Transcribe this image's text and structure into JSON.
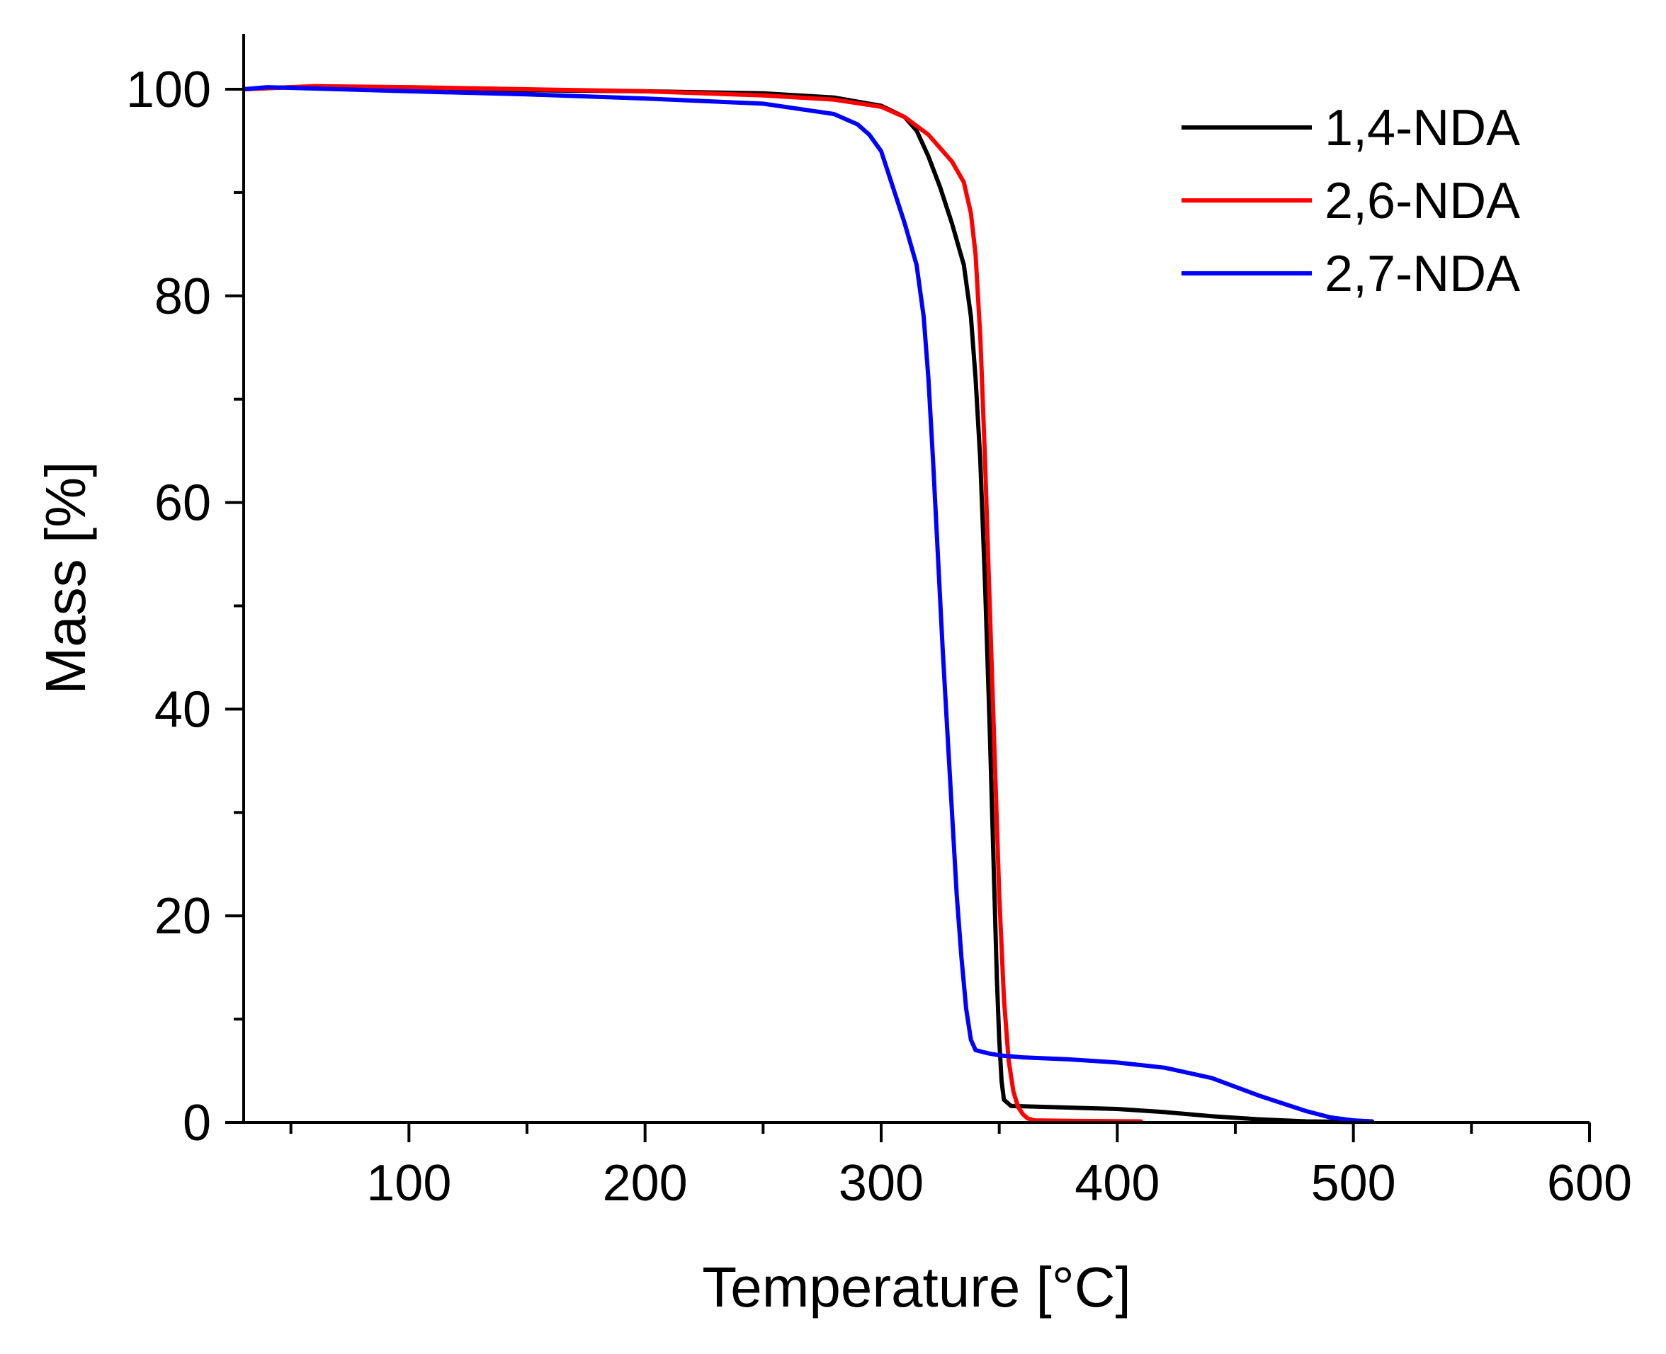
{
  "chart_data": {
    "type": "line",
    "title": "",
    "xlabel": "Temperature [°C]",
    "ylabel": "Mass [%]",
    "xlim": [
      30,
      600
    ],
    "ylim": [
      0,
      105
    ],
    "xticks": [
      100,
      200,
      300,
      400,
      500,
      600
    ],
    "xminor": [
      50,
      150,
      250,
      350,
      450,
      550
    ],
    "yticks": [
      0,
      20,
      40,
      60,
      80,
      100
    ],
    "yminor": [
      10,
      30,
      50,
      70,
      90
    ],
    "legend_position": "top-right",
    "series": [
      {
        "name": "1,4-NDA",
        "color": "#000000",
        "points": [
          [
            30,
            100
          ],
          [
            50,
            100.2
          ],
          [
            100,
            100
          ],
          [
            150,
            99.9
          ],
          [
            200,
            99.8
          ],
          [
            250,
            99.6
          ],
          [
            280,
            99.2
          ],
          [
            300,
            98.4
          ],
          [
            310,
            97.3
          ],
          [
            315,
            96
          ],
          [
            320,
            93.5
          ],
          [
            325,
            90.5
          ],
          [
            330,
            87
          ],
          [
            335,
            83
          ],
          [
            338,
            78
          ],
          [
            340,
            72
          ],
          [
            342,
            64
          ],
          [
            344,
            52
          ],
          [
            346,
            38
          ],
          [
            348,
            22
          ],
          [
            349,
            14
          ],
          [
            350,
            8
          ],
          [
            351,
            4
          ],
          [
            352,
            2.2
          ],
          [
            355,
            1.6
          ],
          [
            370,
            1.5
          ],
          [
            400,
            1.3
          ],
          [
            420,
            1.0
          ],
          [
            440,
            0.6
          ],
          [
            460,
            0.3
          ],
          [
            480,
            0.1
          ],
          [
            500,
            0.05
          ]
        ]
      },
      {
        "name": "2,6-NDA",
        "color": "#ff0000",
        "points": [
          [
            30,
            100
          ],
          [
            60,
            100.3
          ],
          [
            100,
            100.2
          ],
          [
            150,
            100
          ],
          [
            200,
            99.8
          ],
          [
            250,
            99.4
          ],
          [
            280,
            99
          ],
          [
            300,
            98.3
          ],
          [
            310,
            97.3
          ],
          [
            320,
            95.6
          ],
          [
            330,
            93
          ],
          [
            335,
            91
          ],
          [
            338,
            88
          ],
          [
            340,
            84
          ],
          [
            342,
            76
          ],
          [
            344,
            64
          ],
          [
            346,
            50
          ],
          [
            348,
            36
          ],
          [
            350,
            22
          ],
          [
            352,
            12
          ],
          [
            354,
            6
          ],
          [
            356,
            3
          ],
          [
            358,
            1.5
          ],
          [
            360,
            0.8
          ],
          [
            362,
            0.4
          ],
          [
            365,
            0.2
          ],
          [
            380,
            0.15
          ],
          [
            410,
            0.1
          ]
        ]
      },
      {
        "name": "2,7-NDA",
        "color": "#0000ff",
        "points": [
          [
            30,
            100
          ],
          [
            40,
            100.2
          ],
          [
            100,
            99.8
          ],
          [
            150,
            99.5
          ],
          [
            200,
            99.1
          ],
          [
            250,
            98.6
          ],
          [
            280,
            97.6
          ],
          [
            290,
            96.6
          ],
          [
            295,
            95.6
          ],
          [
            300,
            94
          ],
          [
            305,
            90.5
          ],
          [
            310,
            87
          ],
          [
            315,
            83
          ],
          [
            318,
            78
          ],
          [
            320,
            72
          ],
          [
            322,
            64
          ],
          [
            324,
            55
          ],
          [
            326,
            46
          ],
          [
            328,
            38
          ],
          [
            330,
            30
          ],
          [
            332,
            22
          ],
          [
            334,
            16
          ],
          [
            336,
            11
          ],
          [
            338,
            8
          ],
          [
            340,
            7
          ],
          [
            345,
            6.7
          ],
          [
            350,
            6.5
          ],
          [
            360,
            6.3
          ],
          [
            380,
            6.1
          ],
          [
            400,
            5.8
          ],
          [
            420,
            5.3
          ],
          [
            440,
            4.3
          ],
          [
            460,
            2.6
          ],
          [
            480,
            1.1
          ],
          [
            490,
            0.5
          ],
          [
            500,
            0.2
          ],
          [
            508,
            0.1
          ]
        ]
      }
    ]
  }
}
